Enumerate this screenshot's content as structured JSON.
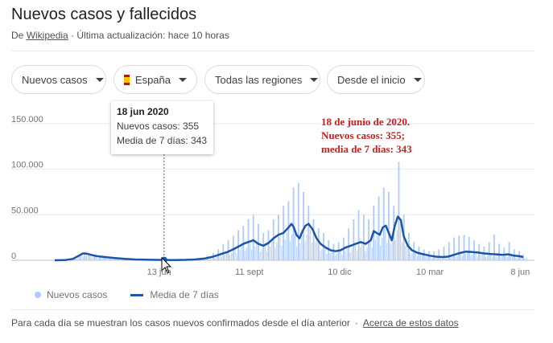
{
  "header": {
    "title": "Nuevos casos y fallecidos",
    "source_prefix": "De",
    "source_link": "Wikipedia",
    "updated": " · Última actualización: hace 10 horas"
  },
  "filters": {
    "metric": "Nuevos casos",
    "country": "España",
    "region": "Todas las regiones",
    "range": "Desde el inicio"
  },
  "tooltip": {
    "date": "18 jun 2020",
    "new_cases": "Nuevos casos: 355",
    "avg": "Media de 7 días: 343"
  },
  "annotation": {
    "line1": "18 de junio de 2020.",
    "line2": "Nuevos casos: 355;",
    "line3": "media de 7 días: 343"
  },
  "legend": {
    "cases": "Nuevos casos",
    "avg": "Media de 7 días"
  },
  "footer": {
    "note": "Para cada día se muestran los casos nuevos confirmados desde el día anterior",
    "link": "Acerca de estos datos"
  },
  "colors": {
    "bars": "#aecbfa",
    "line": "#1a55a8",
    "annotation": "#c5221f"
  },
  "chart_data": {
    "type": "bar",
    "title": "",
    "xlabel": "",
    "ylabel": "",
    "ylim": [
      0,
      160000
    ],
    "yticks": [
      0,
      50000,
      100000,
      150000
    ],
    "ytick_labels": [
      "0",
      "50.000",
      "100.000",
      "150.000"
    ],
    "xtick_labels": [
      {
        "label": "13 jun",
        "day": 104
      },
      {
        "label": "11 sept",
        "day": 194
      },
      {
        "label": "10 dic",
        "day": 284
      },
      {
        "label": "10 mar",
        "day": 374
      },
      {
        "label": "8 jun",
        "day": 464
      }
    ],
    "hover_day": 109,
    "series": [
      {
        "name": "Nuevos casos",
        "kind": "bar",
        "points": [
          [
            0,
            0
          ],
          [
            10,
            300
          ],
          [
            20,
            1800
          ],
          [
            25,
            6000
          ],
          [
            30,
            9000
          ],
          [
            35,
            7500
          ],
          [
            40,
            6000
          ],
          [
            45,
            5000
          ],
          [
            50,
            4000
          ],
          [
            55,
            2500
          ],
          [
            60,
            1500
          ],
          [
            70,
            700
          ],
          [
            80,
            500
          ],
          [
            90,
            400
          ],
          [
            100,
            400
          ],
          [
            109,
            355
          ],
          [
            115,
            400
          ],
          [
            125,
            600
          ],
          [
            135,
            1200
          ],
          [
            145,
            2500
          ],
          [
            152,
            5000
          ],
          [
            158,
            8000
          ],
          [
            163,
            12000
          ],
          [
            168,
            18000
          ],
          [
            173,
            22000
          ],
          [
            178,
            27000
          ],
          [
            183,
            33000
          ],
          [
            188,
            38000
          ],
          [
            193,
            45000
          ],
          [
            198,
            50000
          ],
          [
            203,
            40000
          ],
          [
            208,
            30000
          ],
          [
            213,
            33000
          ],
          [
            218,
            45000
          ],
          [
            223,
            50000
          ],
          [
            228,
            60000
          ],
          [
            233,
            65000
          ],
          [
            238,
            80000
          ],
          [
            243,
            85000
          ],
          [
            248,
            75000
          ],
          [
            253,
            60000
          ],
          [
            258,
            45000
          ],
          [
            263,
            35000
          ],
          [
            268,
            30000
          ],
          [
            273,
            22000
          ],
          [
            278,
            18000
          ],
          [
            283,
            20000
          ],
          [
            288,
            25000
          ],
          [
            293,
            35000
          ],
          [
            298,
            45000
          ],
          [
            303,
            55000
          ],
          [
            308,
            50000
          ],
          [
            313,
            45000
          ],
          [
            318,
            60000
          ],
          [
            323,
            70000
          ],
          [
            328,
            80000
          ],
          [
            333,
            75000
          ],
          [
            338,
            60000
          ],
          [
            343,
            108000
          ],
          [
            348,
            50000
          ],
          [
            353,
            30000
          ],
          [
            358,
            20000
          ],
          [
            363,
            15000
          ],
          [
            368,
            12000
          ],
          [
            373,
            10000
          ],
          [
            378,
            10000
          ],
          [
            383,
            12000
          ],
          [
            388,
            15000
          ],
          [
            393,
            20000
          ],
          [
            398,
            25000
          ],
          [
            403,
            27000
          ],
          [
            408,
            28000
          ],
          [
            413,
            26000
          ],
          [
            418,
            22000
          ],
          [
            423,
            18000
          ],
          [
            428,
            15000
          ],
          [
            433,
            20000
          ],
          [
            438,
            28000
          ],
          [
            443,
            18000
          ],
          [
            448,
            14000
          ],
          [
            453,
            20000
          ],
          [
            458,
            12000
          ],
          [
            463,
            10000
          ],
          [
            467,
            6000
          ]
        ]
      },
      {
        "name": "Media de 7 días",
        "kind": "line",
        "points": [
          [
            0,
            0
          ],
          [
            10,
            200
          ],
          [
            18,
            1500
          ],
          [
            24,
            5000
          ],
          [
            28,
            7500
          ],
          [
            32,
            7200
          ],
          [
            36,
            6000
          ],
          [
            42,
            4500
          ],
          [
            50,
            3500
          ],
          [
            60,
            2500
          ],
          [
            70,
            1500
          ],
          [
            80,
            900
          ],
          [
            90,
            600
          ],
          [
            100,
            450
          ],
          [
            109,
            343
          ],
          [
            120,
            300
          ],
          [
            130,
            450
          ],
          [
            140,
            900
          ],
          [
            150,
            2000
          ],
          [
            158,
            4000
          ],
          [
            165,
            6500
          ],
          [
            172,
            9000
          ],
          [
            178,
            12000
          ],
          [
            183,
            15000
          ],
          [
            188,
            18000
          ],
          [
            193,
            20000
          ],
          [
            198,
            22000
          ],
          [
            203,
            18000
          ],
          [
            208,
            16000
          ],
          [
            213,
            19000
          ],
          [
            218,
            24000
          ],
          [
            223,
            28000
          ],
          [
            228,
            30000
          ],
          [
            233,
            36000
          ],
          [
            236,
            40000
          ],
          [
            238,
            37000
          ],
          [
            241,
            28000
          ],
          [
            244,
            24000
          ],
          [
            247,
            32000
          ],
          [
            250,
            38000
          ],
          [
            253,
            40000
          ],
          [
            257,
            34000
          ],
          [
            261,
            24000
          ],
          [
            265,
            18000
          ],
          [
            270,
            14000
          ],
          [
            275,
            11000
          ],
          [
            280,
            10000
          ],
          [
            285,
            11000
          ],
          [
            290,
            14000
          ],
          [
            295,
            16000
          ],
          [
            300,
            18000
          ],
          [
            305,
            20000
          ],
          [
            310,
            18000
          ],
          [
            315,
            22000
          ],
          [
            318,
            32000
          ],
          [
            321,
            30000
          ],
          [
            324,
            28000
          ],
          [
            327,
            36000
          ],
          [
            330,
            38000
          ],
          [
            333,
            30000
          ],
          [
            336,
            22000
          ],
          [
            339,
            38000
          ],
          [
            342,
            48000
          ],
          [
            345,
            44000
          ],
          [
            348,
            26000
          ],
          [
            352,
            16000
          ],
          [
            356,
            11000
          ],
          [
            362,
            8000
          ],
          [
            368,
            6500
          ],
          [
            374,
            5000
          ],
          [
            380,
            4000
          ],
          [
            386,
            3500
          ],
          [
            392,
            4000
          ],
          [
            398,
            6000
          ],
          [
            404,
            8000
          ],
          [
            410,
            9500
          ],
          [
            416,
            9000
          ],
          [
            422,
            8500
          ],
          [
            428,
            7500
          ],
          [
            434,
            7000
          ],
          [
            440,
            6500
          ],
          [
            446,
            6000
          ],
          [
            452,
            6500
          ],
          [
            458,
            5000
          ],
          [
            463,
            4500
          ],
          [
            467,
            3500
          ]
        ]
      }
    ]
  }
}
